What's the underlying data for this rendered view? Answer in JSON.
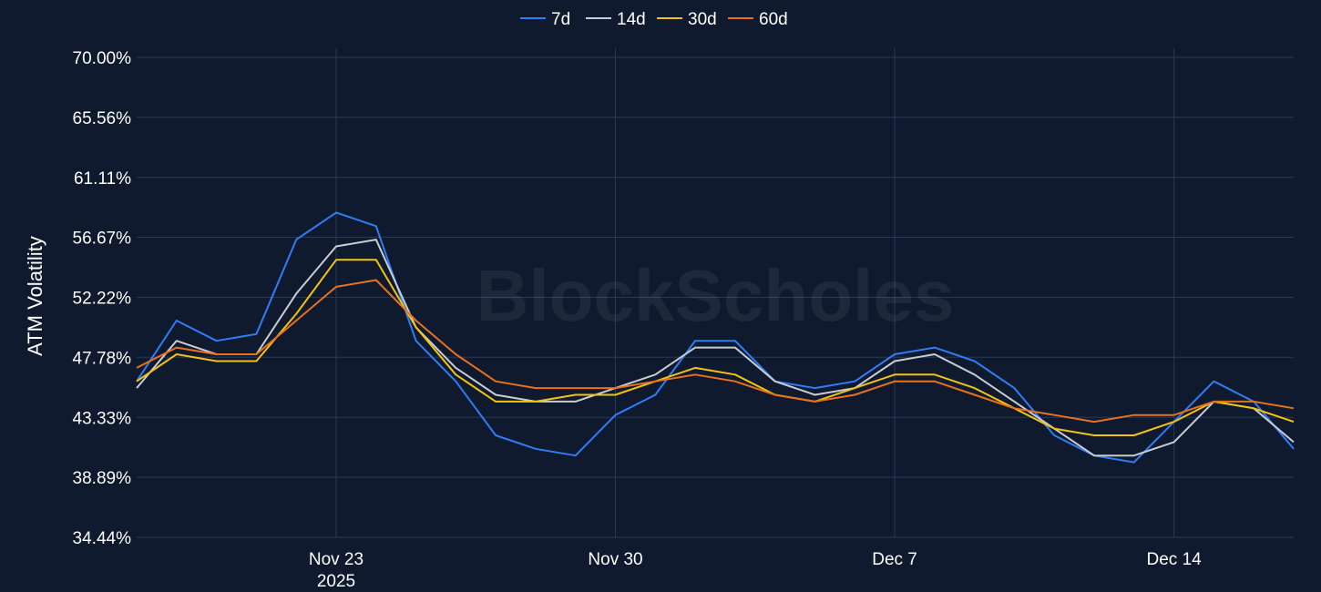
{
  "watermark": "BlockScholes",
  "chart_data": {
    "type": "line",
    "title": "",
    "xlabel": "",
    "ylabel": "ATM Volatility",
    "ylim": [
      34.44,
      70.0
    ],
    "yticks": [
      "70.00%",
      "65.56%",
      "61.11%",
      "56.67%",
      "52.22%",
      "47.78%",
      "43.33%",
      "38.89%",
      "34.44%"
    ],
    "xlim": [
      "2025-11-18",
      "2025-12-17"
    ],
    "xticks": [
      {
        "date": "2025-11-23",
        "label": "Nov 23",
        "sublabel": "2025"
      },
      {
        "date": "2025-11-30",
        "label": "Nov 30",
        "sublabel": ""
      },
      {
        "date": "2025-12-07",
        "label": "Dec 7",
        "sublabel": ""
      },
      {
        "date": "2025-12-14",
        "label": "Dec 14",
        "sublabel": ""
      }
    ],
    "grid": true,
    "legend": "top-center",
    "x": [
      "2025-11-18",
      "2025-11-19",
      "2025-11-20",
      "2025-11-21",
      "2025-11-22",
      "2025-11-23",
      "2025-11-24",
      "2025-11-25",
      "2025-11-26",
      "2025-11-27",
      "2025-11-28",
      "2025-11-29",
      "2025-11-30",
      "2025-12-01",
      "2025-12-02",
      "2025-12-03",
      "2025-12-04",
      "2025-12-05",
      "2025-12-06",
      "2025-12-07",
      "2025-12-08",
      "2025-12-09",
      "2025-12-10",
      "2025-12-11",
      "2025-12-12",
      "2025-12-13",
      "2025-12-14",
      "2025-12-15",
      "2025-12-16",
      "2025-12-17"
    ],
    "series": [
      {
        "name": "7d",
        "color": "#2f7df6",
        "values": [
          46.0,
          50.5,
          49.0,
          49.5,
          56.5,
          58.5,
          57.5,
          49.0,
          46.0,
          42.0,
          41.0,
          40.5,
          43.5,
          45.0,
          49.0,
          49.0,
          46.0,
          45.5,
          46.0,
          48.0,
          48.5,
          47.5,
          45.5,
          42.0,
          40.5,
          40.0,
          43.0,
          46.0,
          44.5,
          41.0
        ]
      },
      {
        "name": "14d",
        "color": "#c8ccd4",
        "values": [
          45.5,
          49.0,
          48.0,
          48.0,
          52.5,
          56.0,
          56.5,
          50.0,
          47.0,
          45.0,
          44.5,
          44.5,
          45.5,
          46.5,
          48.5,
          48.5,
          46.0,
          45.0,
          45.5,
          47.5,
          48.0,
          46.5,
          44.5,
          42.5,
          40.5,
          40.5,
          41.5,
          44.5,
          44.0,
          41.5
        ]
      },
      {
        "name": "30d",
        "color": "#f2c311",
        "values": [
          46.0,
          48.0,
          47.5,
          47.5,
          51.0,
          55.0,
          55.0,
          50.0,
          46.5,
          44.5,
          44.5,
          45.0,
          45.0,
          46.0,
          47.0,
          46.5,
          45.0,
          44.5,
          45.5,
          46.5,
          46.5,
          45.5,
          44.0,
          42.5,
          42.0,
          42.0,
          43.0,
          44.5,
          44.0,
          43.0
        ]
      },
      {
        "name": "60d",
        "color": "#e8711e",
        "values": [
          47.0,
          48.5,
          48.0,
          48.0,
          50.5,
          53.0,
          53.5,
          50.5,
          48.0,
          46.0,
          45.5,
          45.5,
          45.5,
          46.0,
          46.5,
          46.0,
          45.0,
          44.5,
          45.0,
          46.0,
          46.0,
          45.0,
          44.0,
          43.5,
          43.0,
          43.5,
          43.5,
          44.5,
          44.5,
          44.0
        ]
      }
    ]
  }
}
